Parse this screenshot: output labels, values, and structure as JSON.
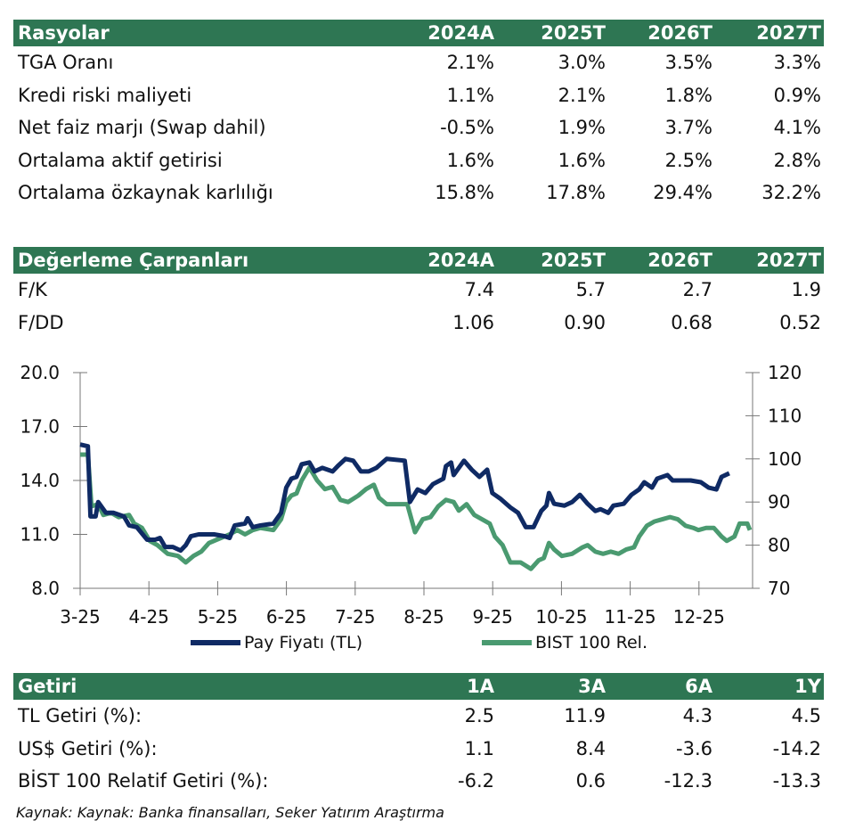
{
  "ratios": {
    "header": [
      "Rasyolar",
      "2024A",
      "2025T",
      "2026T",
      "2027T"
    ],
    "rows": [
      [
        "TGA Oranı",
        "2.1%",
        "3.0%",
        "3.5%",
        "3.3%"
      ],
      [
        "Kredi riski maliyeti",
        "1.1%",
        "2.1%",
        "1.8%",
        "0.9%"
      ],
      [
        "Net faiz marjı (Swap dahil)",
        "-0.5%",
        "1.9%",
        "3.7%",
        "4.1%"
      ],
      [
        "Ortalama aktif getirisi",
        "1.6%",
        "1.6%",
        "2.5%",
        "2.8%"
      ],
      [
        "Ortalama özkaynak karlılığı",
        "15.8%",
        "17.8%",
        "29.4%",
        "32.2%"
      ]
    ]
  },
  "valuation": {
    "header": [
      "Değerleme Çarpanları",
      "2024A",
      "2025T",
      "2026T",
      "2027T"
    ],
    "rows": [
      [
        "F/K",
        "7.4",
        "5.7",
        "2.7",
        "1.9"
      ],
      [
        "F/DD",
        "1.06",
        "0.90",
        "0.68",
        "0.52"
      ]
    ]
  },
  "returns": {
    "header": [
      "Getiri",
      "1A",
      "3A",
      "6A",
      "1Y"
    ],
    "rows": [
      [
        "TL Getiri (%):",
        "2.5",
        "11.9",
        "4.3",
        "4.5"
      ],
      [
        "US$ Getiri (%):",
        "1.1",
        "8.4",
        "-3.6",
        "-14.2"
      ],
      [
        "BİST 100 Relatif Getiri (%):",
        "-6.2",
        "0.6",
        "-12.3",
        "-13.3"
      ]
    ]
  },
  "footnote": "Kaynak: Kaynak: Banka finansalları, Seker Yatırım Araştırma",
  "chart_data": {
    "type": "line",
    "x_categories": [
      "3-25",
      "4-25",
      "5-25",
      "6-25",
      "7-25",
      "8-25",
      "9-25",
      "10-25",
      "11-25",
      "12-25"
    ],
    "left_axis": {
      "ticks": [
        "20.0",
        "17.0",
        "14.0",
        "11.0",
        "8.0"
      ],
      "range": [
        8,
        20
      ]
    },
    "right_axis": {
      "ticks": [
        "120",
        "110",
        "100",
        "90",
        "80",
        "70"
      ],
      "range": [
        70,
        120
      ]
    },
    "series": [
      {
        "name": "Pay Fiyatı (TL)",
        "axis": "left",
        "color": "#0f2a64",
        "points": [
          [
            0,
            16.0
          ],
          [
            0.15,
            15.9
          ],
          [
            0.2,
            12.0
          ],
          [
            0.3,
            12.0
          ],
          [
            0.35,
            12.8
          ],
          [
            0.5,
            12.2
          ],
          [
            0.65,
            12.2
          ],
          [
            0.85,
            12.0
          ],
          [
            0.95,
            11.5
          ],
          [
            1.1,
            11.4
          ],
          [
            1.3,
            10.7
          ],
          [
            1.45,
            10.7
          ],
          [
            1.55,
            10.8
          ],
          [
            1.65,
            10.3
          ],
          [
            1.8,
            10.3
          ],
          [
            1.95,
            10.1
          ],
          [
            2.05,
            10.4
          ],
          [
            2.15,
            10.9
          ],
          [
            2.3,
            11.0
          ],
          [
            2.6,
            11.0
          ],
          [
            2.8,
            10.9
          ],
          [
            2.9,
            10.8
          ],
          [
            3.0,
            11.5
          ],
          [
            3.2,
            11.6
          ],
          [
            3.25,
            11.9
          ],
          [
            3.35,
            11.4
          ],
          [
            3.5,
            11.5
          ],
          [
            3.75,
            11.6
          ],
          [
            3.9,
            12.2
          ],
          [
            4.0,
            13.6
          ],
          [
            4.1,
            14.1
          ],
          [
            4.2,
            14.2
          ],
          [
            4.3,
            14.9
          ],
          [
            4.45,
            15.0
          ],
          [
            4.55,
            14.5
          ],
          [
            4.7,
            14.7
          ],
          [
            4.9,
            14.5
          ],
          [
            5.0,
            14.8
          ],
          [
            5.15,
            15.2
          ],
          [
            5.3,
            15.1
          ],
          [
            5.45,
            14.5
          ],
          [
            5.6,
            14.5
          ],
          [
            5.75,
            14.7
          ],
          [
            5.95,
            15.2
          ],
          [
            6.3,
            15.1
          ],
          [
            6.4,
            12.8
          ],
          [
            6.55,
            13.5
          ],
          [
            6.7,
            13.3
          ],
          [
            6.85,
            13.8
          ],
          [
            7.05,
            14.1
          ],
          [
            7.1,
            14.8
          ],
          [
            7.2,
            15.0
          ],
          [
            7.25,
            14.3
          ],
          [
            7.45,
            15.1
          ],
          [
            7.6,
            14.6
          ],
          [
            7.75,
            14.2
          ],
          [
            7.9,
            14.6
          ],
          [
            8.0,
            13.3
          ],
          [
            8.15,
            13.0
          ],
          [
            8.35,
            12.5
          ],
          [
            8.5,
            12.2
          ],
          [
            8.65,
            11.4
          ],
          [
            8.8,
            11.4
          ],
          [
            8.95,
            12.3
          ],
          [
            9.05,
            12.6
          ],
          [
            9.1,
            13.3
          ],
          [
            9.2,
            12.7
          ],
          [
            9.4,
            12.6
          ],
          [
            9.55,
            12.8
          ],
          [
            9.7,
            13.2
          ],
          [
            9.85,
            12.7
          ],
          [
            10.0,
            12.3
          ],
          [
            10.1,
            12.4
          ],
          [
            10.25,
            12.2
          ],
          [
            10.35,
            12.6
          ],
          [
            10.55,
            12.7
          ],
          [
            10.7,
            13.2
          ],
          [
            10.85,
            13.5
          ],
          [
            10.95,
            13.9
          ],
          [
            11.1,
            13.6
          ],
          [
            11.2,
            14.1
          ],
          [
            11.4,
            14.3
          ],
          [
            11.5,
            14.0
          ],
          [
            11.7,
            14.0
          ],
          [
            11.85,
            14.0
          ],
          [
            12.05,
            13.9
          ],
          [
            12.2,
            13.6
          ],
          [
            12.35,
            13.5
          ],
          [
            12.45,
            14.2
          ],
          [
            12.6,
            14.4
          ]
        ]
      },
      {
        "name": "BIST 100 Rel.",
        "axis": "right",
        "color": "#4a9a70",
        "points": [
          [
            0,
            101
          ],
          [
            0.15,
            101
          ],
          [
            0.22,
            89
          ],
          [
            0.35,
            89.5
          ],
          [
            0.45,
            87
          ],
          [
            0.6,
            87.5
          ],
          [
            0.75,
            86.5
          ],
          [
            0.95,
            87
          ],
          [
            1.05,
            85
          ],
          [
            1.2,
            84
          ],
          [
            1.35,
            81
          ],
          [
            1.5,
            80
          ],
          [
            1.7,
            78
          ],
          [
            1.9,
            77.5
          ],
          [
            2.05,
            76
          ],
          [
            2.2,
            77.5
          ],
          [
            2.35,
            78.5
          ],
          [
            2.5,
            80.5
          ],
          [
            2.7,
            81.5
          ],
          [
            2.9,
            82.5
          ],
          [
            3.05,
            83.5
          ],
          [
            3.2,
            82.5
          ],
          [
            3.35,
            83.5
          ],
          [
            3.5,
            84
          ],
          [
            3.75,
            83.5
          ],
          [
            3.9,
            86
          ],
          [
            4.0,
            90
          ],
          [
            4.1,
            91.5
          ],
          [
            4.2,
            92
          ],
          [
            4.3,
            95
          ],
          [
            4.45,
            98
          ],
          [
            4.6,
            95
          ],
          [
            4.75,
            93
          ],
          [
            4.9,
            93.5
          ],
          [
            5.05,
            90.5
          ],
          [
            5.2,
            90
          ],
          [
            5.4,
            91.5
          ],
          [
            5.55,
            93
          ],
          [
            5.7,
            94
          ],
          [
            5.8,
            91
          ],
          [
            5.95,
            89.5
          ],
          [
            6.15,
            89.5
          ],
          [
            6.35,
            89.5
          ],
          [
            6.5,
            83
          ],
          [
            6.65,
            86
          ],
          [
            6.8,
            86.5
          ],
          [
            6.95,
            89
          ],
          [
            7.1,
            90.5
          ],
          [
            7.25,
            90
          ],
          [
            7.35,
            88
          ],
          [
            7.5,
            89.5
          ],
          [
            7.65,
            87
          ],
          [
            7.8,
            86
          ],
          [
            7.95,
            85
          ],
          [
            8.05,
            82
          ],
          [
            8.2,
            80
          ],
          [
            8.35,
            76
          ],
          [
            8.55,
            76
          ],
          [
            8.75,
            74.5
          ],
          [
            8.9,
            76.5
          ],
          [
            9.0,
            77
          ],
          [
            9.1,
            80.5
          ],
          [
            9.2,
            79
          ],
          [
            9.35,
            77.5
          ],
          [
            9.55,
            78
          ],
          [
            9.75,
            79.5
          ],
          [
            9.85,
            80
          ],
          [
            10.0,
            78.5
          ],
          [
            10.15,
            78
          ],
          [
            10.3,
            78.5
          ],
          [
            10.45,
            78
          ],
          [
            10.6,
            79
          ],
          [
            10.75,
            79.5
          ],
          [
            10.85,
            82
          ],
          [
            11.0,
            84.5
          ],
          [
            11.15,
            85.5
          ],
          [
            11.3,
            86
          ],
          [
            11.45,
            86.5
          ],
          [
            11.6,
            86
          ],
          [
            11.75,
            84.5
          ],
          [
            11.9,
            84
          ],
          [
            12.0,
            83.5
          ],
          [
            12.15,
            84
          ],
          [
            12.3,
            84
          ],
          [
            12.45,
            82
          ],
          [
            12.55,
            81
          ],
          [
            12.7,
            82
          ],
          [
            12.8,
            85
          ],
          [
            12.95,
            85
          ],
          [
            13.0,
            83.5
          ]
        ]
      }
    ],
    "legend": [
      "Pay Fiyatı (TL)",
      "BIST 100 Rel."
    ],
    "legend_placement": "bottom"
  }
}
